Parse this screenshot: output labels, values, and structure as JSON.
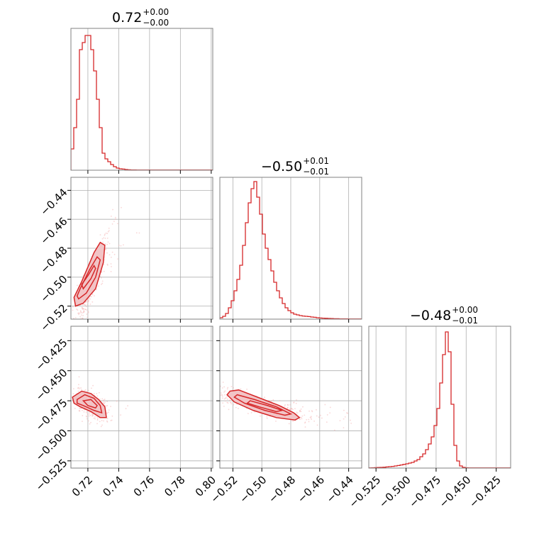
{
  "chart_data": {
    "type": "corner",
    "color": "#d62728",
    "params": [
      {
        "median": 0.72,
        "plus": 0.0,
        "minus": 0.0,
        "range": [
          0.709,
          0.801
        ],
        "ticks": [
          0.72,
          0.74,
          0.76,
          0.78,
          0.8
        ],
        "tick_labels": [
          "0.72",
          "0.74",
          "0.76",
          "0.78",
          "0.80"
        ]
      },
      {
        "median": -0.5,
        "plus": 0.01,
        "minus": 0.01,
        "range": [
          -0.529,
          -0.431
        ],
        "ticks": [
          -0.52,
          -0.5,
          -0.48,
          -0.46,
          -0.44
        ],
        "tick_labels": [
          "−0.52",
          "−0.50",
          "−0.48",
          "−0.46",
          "−0.44"
        ]
      },
      {
        "median": -0.48,
        "plus": 0.0,
        "minus": 0.01,
        "range": [
          -0.531,
          -0.413
        ],
        "ticks": [
          -0.525,
          -0.5,
          -0.475,
          -0.45,
          -0.425
        ],
        "tick_labels": [
          "−0.525",
          "−0.500",
          "−0.475",
          "−0.450",
          "−0.425"
        ]
      }
    ],
    "titles": [
      {
        "main": "0.72",
        "sup": "+0.00",
        "sub": "−0.00"
      },
      {
        "main": "−0.50",
        "sup": "+0.01",
        "sub": "−0.01"
      },
      {
        "main": "−0.48",
        "sup": "+0.00",
        "sub": "−0.01"
      }
    ],
    "histograms": [
      {
        "param": 0,
        "heights": [
          0.15,
          0.3,
          0.5,
          0.85,
          0.9,
          0.95,
          0.95,
          0.85,
          0.7,
          0.5,
          0.3,
          0.12,
          0.08,
          0.06,
          0.04,
          0.025,
          0.015,
          0.01,
          0.008,
          0.005,
          0.003,
          0.002,
          0.0015,
          0.001,
          0.001,
          0.001,
          0.001,
          0.001,
          0.001,
          0.001,
          0.001,
          0.001,
          0.001,
          0.001,
          0.001,
          0.001,
          0.001,
          0.001,
          0.001,
          0.001,
          0.001,
          0.001,
          0.001,
          0.001,
          0.001,
          0.001,
          0.001,
          0.001,
          0.001,
          0.001
        ]
      },
      {
        "param": 1,
        "heights": [
          0.01,
          0.02,
          0.04,
          0.08,
          0.13,
          0.2,
          0.28,
          0.38,
          0.52,
          0.68,
          0.82,
          0.92,
          0.97,
          0.86,
          0.74,
          0.6,
          0.5,
          0.42,
          0.34,
          0.26,
          0.2,
          0.15,
          0.11,
          0.08,
          0.06,
          0.045,
          0.035,
          0.03,
          0.025,
          0.022,
          0.02,
          0.018,
          0.015,
          0.013,
          0.01,
          0.008,
          0.007,
          0.006,
          0.005,
          0.004,
          0.003,
          0.003,
          0.002,
          0.002,
          0.002,
          0.001,
          0.001,
          0.001,
          0.001,
          0.001
        ]
      },
      {
        "param": 2,
        "heights": [
          0.001,
          0.002,
          0.003,
          0.004,
          0.005,
          0.006,
          0.008,
          0.01,
          0.012,
          0.015,
          0.018,
          0.022,
          0.026,
          0.03,
          0.035,
          0.04,
          0.05,
          0.06,
          0.08,
          0.1,
          0.13,
          0.17,
          0.22,
          0.3,
          0.42,
          0.6,
          0.8,
          0.96,
          0.82,
          0.45,
          0.16,
          0.05,
          0.015,
          0.005,
          0.002,
          0.001,
          0.001,
          0.001,
          0.001,
          0.001,
          0.001,
          0.001,
          0.001,
          0.001,
          0.001,
          0.001,
          0.001,
          0.001,
          0.001,
          0.001
        ]
      }
    ],
    "pairs": [
      {
        "x_param": 0,
        "y_param": 1,
        "mean": [
          0.722,
          -0.505
        ],
        "sd": [
          0.006,
          0.018
        ],
        "corr": 0.94,
        "levels": [
          [
            [
              0.712,
              -0.52
            ],
            [
              0.717,
              -0.518
            ],
            [
              0.725,
              -0.508
            ],
            [
              0.73,
              -0.49
            ],
            [
              0.731,
              -0.478
            ],
            [
              0.728,
              -0.476
            ],
            [
              0.724,
              -0.483
            ],
            [
              0.716,
              -0.503
            ],
            [
              0.711,
              -0.514
            ]
          ],
          [
            [
              0.714,
              -0.515
            ],
            [
              0.719,
              -0.511
            ],
            [
              0.725,
              -0.5
            ],
            [
              0.728,
              -0.488
            ],
            [
              0.726,
              -0.486
            ],
            [
              0.721,
              -0.495
            ],
            [
              0.715,
              -0.508
            ],
            [
              0.713,
              -0.513
            ]
          ],
          [
            [
              0.717,
              -0.508
            ],
            [
              0.722,
              -0.501
            ],
            [
              0.725,
              -0.494
            ],
            [
              0.724,
              -0.492
            ],
            [
              0.72,
              -0.499
            ],
            [
              0.716,
              -0.505
            ]
          ]
        ]
      },
      {
        "x_param": 0,
        "y_param": 2,
        "mean": [
          0.722,
          -0.478
        ],
        "sd": [
          0.005,
          0.006
        ],
        "corr": -0.5,
        "levels": [
          [
            [
              0.71,
              -0.472
            ],
            [
              0.716,
              -0.467
            ],
            [
              0.722,
              -0.469
            ],
            [
              0.727,
              -0.474
            ],
            [
              0.731,
              -0.48
            ],
            [
              0.732,
              -0.489
            ],
            [
              0.728,
              -0.489
            ],
            [
              0.722,
              -0.484
            ],
            [
              0.715,
              -0.48
            ],
            [
              0.711,
              -0.477
            ]
          ],
          [
            [
              0.713,
              -0.474
            ],
            [
              0.718,
              -0.47
            ],
            [
              0.724,
              -0.473
            ],
            [
              0.728,
              -0.479
            ],
            [
              0.729,
              -0.485
            ],
            [
              0.724,
              -0.483
            ],
            [
              0.717,
              -0.479
            ],
            [
              0.713,
              -0.477
            ]
          ],
          [
            [
              0.717,
              -0.475
            ],
            [
              0.722,
              -0.474
            ],
            [
              0.726,
              -0.479
            ],
            [
              0.725,
              -0.481
            ],
            [
              0.72,
              -0.479
            ]
          ]
        ]
      },
      {
        "x_param": 1,
        "y_param": 2,
        "mean": [
          -0.5,
          -0.479
        ],
        "sd": [
          0.018,
          0.007
        ],
        "corr": -0.85,
        "levels": [
          [
            [
              -0.522,
              -0.467
            ],
            [
              -0.516,
              -0.466
            ],
            [
              -0.503,
              -0.472
            ],
            [
              -0.488,
              -0.479
            ],
            [
              -0.478,
              -0.485
            ],
            [
              -0.474,
              -0.489
            ],
            [
              -0.477,
              -0.491
            ],
            [
              -0.49,
              -0.489
            ],
            [
              -0.506,
              -0.483
            ],
            [
              -0.519,
              -0.476
            ],
            [
              -0.524,
              -0.47
            ]
          ],
          [
            [
              -0.517,
              -0.47
            ],
            [
              -0.505,
              -0.474
            ],
            [
              -0.49,
              -0.48
            ],
            [
              -0.48,
              -0.486
            ],
            [
              -0.484,
              -0.487
            ],
            [
              -0.498,
              -0.483
            ],
            [
              -0.512,
              -0.477
            ],
            [
              -0.519,
              -0.472
            ]
          ],
          [
            [
              -0.508,
              -0.475
            ],
            [
              -0.496,
              -0.479
            ],
            [
              -0.486,
              -0.483
            ],
            [
              -0.49,
              -0.484
            ],
            [
              -0.502,
              -0.48
            ],
            [
              -0.51,
              -0.477
            ]
          ]
        ]
      }
    ],
    "grid": true
  }
}
